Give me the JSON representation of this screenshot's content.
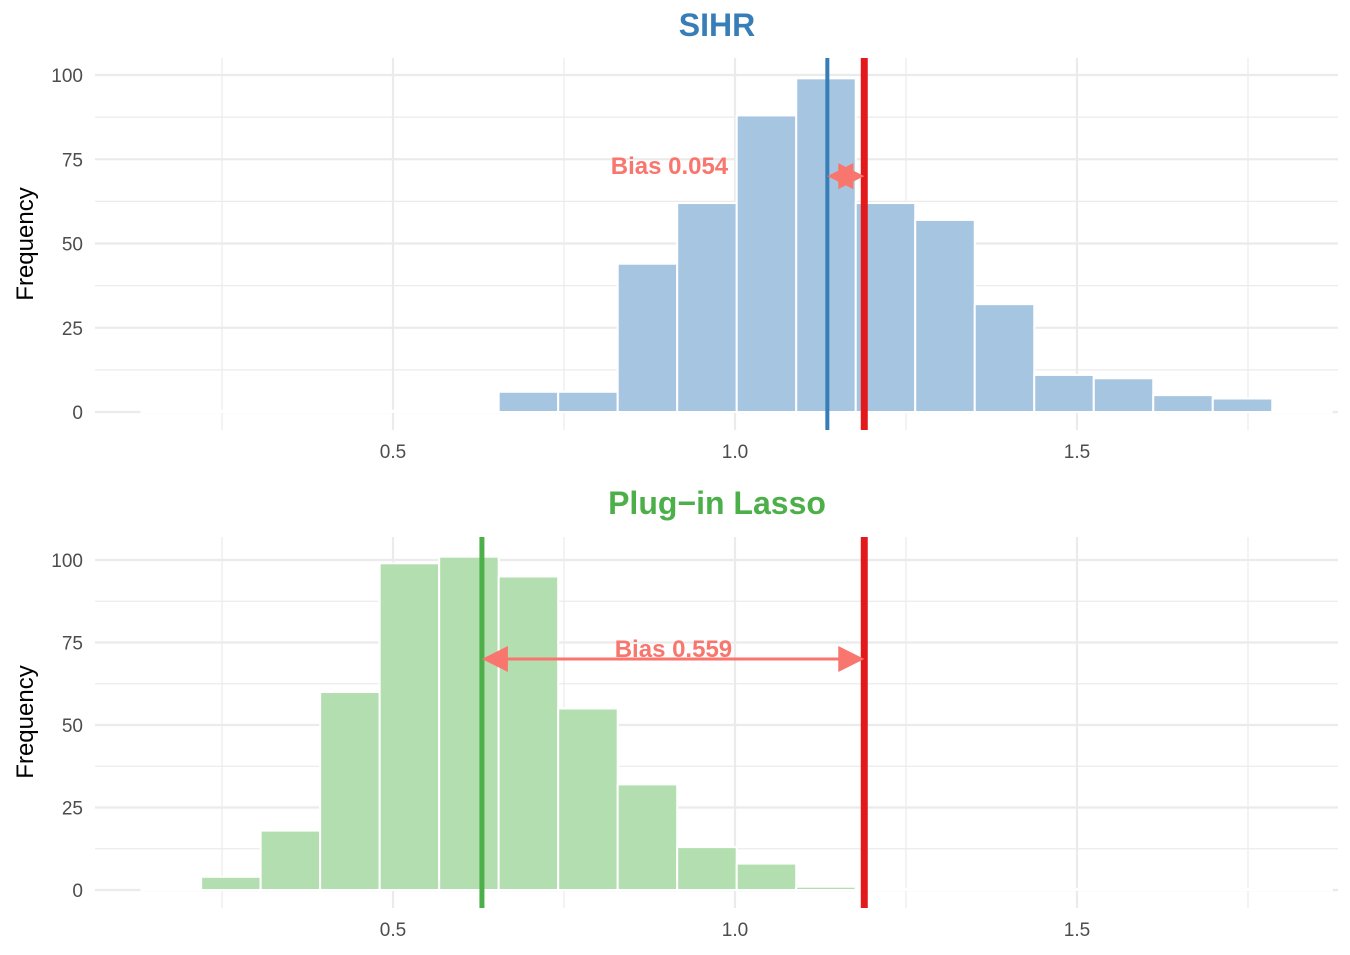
{
  "colors": {
    "grid": "#ebebeb",
    "true_line": "#e31a1c",
    "annotation": "#f8766d",
    "panel_bg": "#ffffff"
  },
  "chart_data": [
    {
      "type": "bar",
      "title": "SIHR",
      "title_color": "#377eb8",
      "ylabel": "Frequency",
      "xlabel": "",
      "fill_color": "#a6c5e0",
      "estimate_line_color": "#377eb8",
      "xlim": [
        0.1,
        1.9
      ],
      "ylim": [
        0,
        100
      ],
      "x_ticks": [
        0.5,
        1.0,
        1.5
      ],
      "x_tick_labels": [
        "0.5",
        "1.0",
        "1.5"
      ],
      "y_ticks": [
        0,
        25,
        50,
        75,
        100
      ],
      "y_tick_labels": [
        "0",
        "25",
        "50",
        "75",
        "100"
      ],
      "bin_width": 0.087,
      "bin_centers": [
        0.176,
        0.263,
        0.35,
        0.437,
        0.524,
        0.611,
        0.698,
        0.785,
        0.872,
        0.959,
        1.046,
        1.133,
        1.22,
        1.307,
        1.394,
        1.481,
        1.568,
        1.655,
        1.742,
        1.829
      ],
      "values": [
        0,
        0,
        0,
        0,
        0,
        0,
        6,
        6,
        44,
        62,
        88,
        99,
        62,
        57,
        32,
        11,
        10,
        5,
        4,
        0
      ],
      "estimate_mean": 1.135,
      "true_value": 1.189,
      "bias_label": "Bias 0.054",
      "arrow_y": 70,
      "label_y": 73,
      "label_x": 0.99,
      "label_anchor": "end",
      "grid": true
    },
    {
      "type": "bar",
      "title": "Plug−in Lasso",
      "title_color": "#4daf4a",
      "ylabel": "Frequency",
      "xlabel": "",
      "fill_color": "#b3deb0",
      "estimate_line_color": "#4daf4a",
      "xlim": [
        0.1,
        1.9
      ],
      "ylim": [
        0,
        100
      ],
      "x_ticks": [
        0.5,
        1.0,
        1.5
      ],
      "x_tick_labels": [
        "0.5",
        "1.0",
        "1.5"
      ],
      "y_ticks": [
        0,
        25,
        50,
        75,
        100
      ],
      "y_tick_labels": [
        "0",
        "25",
        "50",
        "75",
        "100"
      ],
      "bin_width": 0.087,
      "bin_centers": [
        0.176,
        0.263,
        0.35,
        0.437,
        0.524,
        0.611,
        0.698,
        0.785,
        0.872,
        0.959,
        1.046,
        1.133,
        1.22,
        1.307,
        1.394,
        1.481,
        1.568,
        1.655,
        1.742,
        1.829
      ],
      "values": [
        0,
        4,
        18,
        60,
        99,
        101,
        95,
        55,
        32,
        13,
        8,
        1,
        0,
        0,
        0,
        0,
        0,
        0,
        0,
        0
      ],
      "estimate_mean": 0.63,
      "true_value": 1.189,
      "bias_label": "Bias 0.559",
      "arrow_y": 70,
      "label_y": 73,
      "label_x": 0.91,
      "label_anchor": "middle",
      "grid": true
    }
  ]
}
